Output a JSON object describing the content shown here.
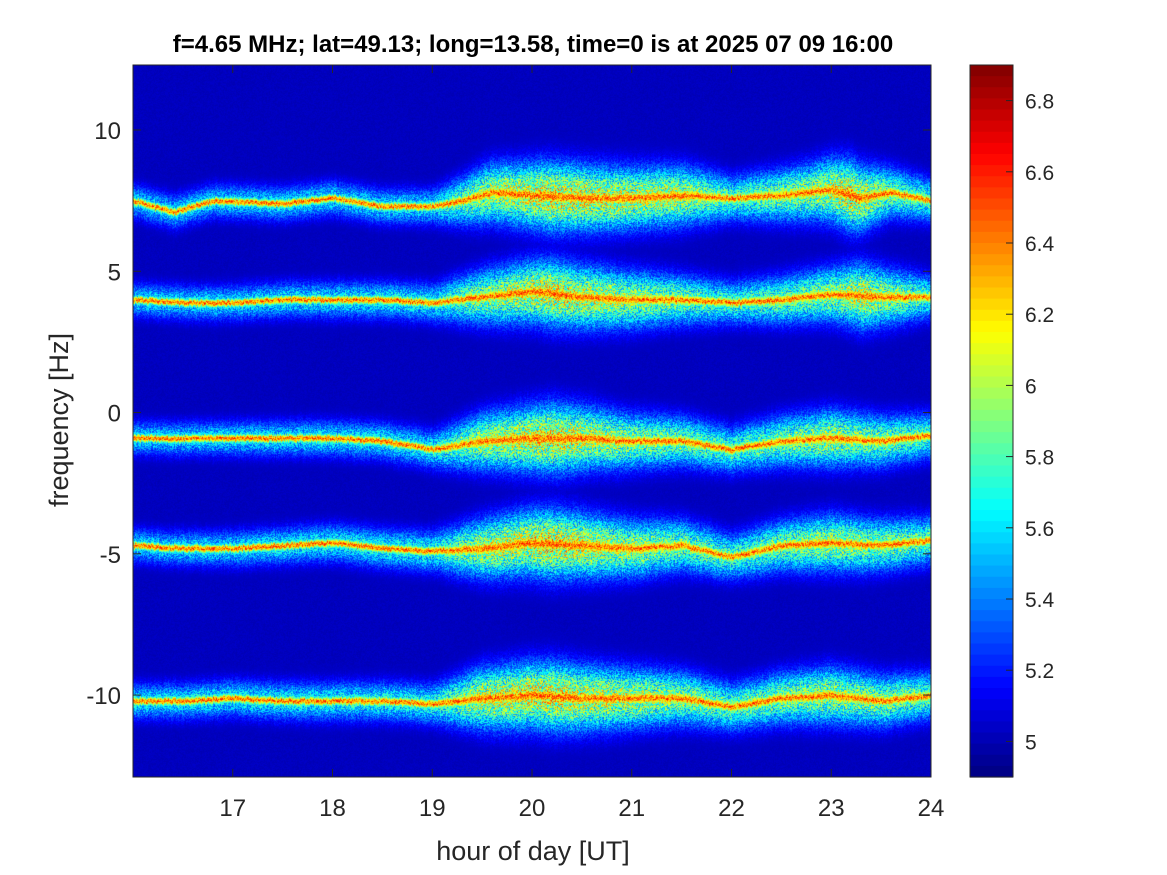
{
  "chart_data": {
    "type": "heatmap",
    "title": "f=4.65 MHz;  lat=49.13; long=13.58, time=0 is at 2025 07 09 16:00",
    "xlabel": "hour of day [UT]",
    "ylabel": "frequency [Hz]",
    "xlim": [
      16,
      24
    ],
    "ylim": [
      -12.9,
      12.3
    ],
    "xticks": [
      17,
      18,
      19,
      20,
      21,
      22,
      23,
      24
    ],
    "xtick_labels": [
      "17",
      "18",
      "19",
      "20",
      "21",
      "22",
      "23",
      "24"
    ],
    "yticks": [
      10,
      5,
      0,
      -5,
      -10
    ],
    "ytick_labels": [
      "10",
      "5",
      "0",
      "-5",
      "-10"
    ],
    "colorbar": {
      "range": [
        4.9,
        6.9
      ],
      "ticks": [
        6.8,
        6.6,
        6.4,
        6.2,
        6,
        5.8,
        5.6,
        5.4,
        5.2,
        5
      ],
      "tick_labels": [
        "6.8",
        "6.6",
        "6.4",
        "6.2",
        "6",
        "5.8",
        "5.6",
        "5.4",
        "5.2",
        "5"
      ],
      "colormap": "jet",
      "position": "right"
    },
    "background_value": 4.92,
    "traces": [
      {
        "baseline": 7.4,
        "points": [
          [
            16,
            7.5
          ],
          [
            16.4,
            7.1
          ],
          [
            16.8,
            7.5
          ],
          [
            17.5,
            7.4
          ],
          [
            18,
            7.6
          ],
          [
            18.5,
            7.3
          ],
          [
            19,
            7.3
          ],
          [
            19.3,
            7.5
          ],
          [
            19.6,
            7.8
          ],
          [
            20,
            7.7
          ],
          [
            20.5,
            7.6
          ],
          [
            21,
            7.6
          ],
          [
            21.5,
            7.7
          ],
          [
            22,
            7.6
          ],
          [
            22.5,
            7.7
          ],
          [
            23,
            7.9
          ],
          [
            23.3,
            7.6
          ],
          [
            23.6,
            7.8
          ],
          [
            24,
            7.5
          ]
        ],
        "activity": [
          [
            16,
            0.25
          ],
          [
            19,
            0.3
          ],
          [
            19.5,
            0.75
          ],
          [
            20.2,
            1.0
          ],
          [
            21,
            0.85
          ],
          [
            21.5,
            0.8
          ],
          [
            22,
            0.5
          ],
          [
            22.8,
            0.75
          ],
          [
            23.2,
            1.0
          ],
          [
            23.6,
            0.6
          ],
          [
            24,
            0.45
          ]
        ]
      },
      {
        "baseline": 4.0,
        "points": [
          [
            16,
            4.0
          ],
          [
            16.5,
            3.9
          ],
          [
            17,
            3.9
          ],
          [
            17.5,
            4.0
          ],
          [
            18,
            4.0
          ],
          [
            18.5,
            4.0
          ],
          [
            19,
            3.9
          ],
          [
            19.5,
            4.1
          ],
          [
            20,
            4.3
          ],
          [
            20.5,
            4.1
          ],
          [
            21,
            4.0
          ],
          [
            21.5,
            4.0
          ],
          [
            22,
            3.9
          ],
          [
            22.5,
            4.0
          ],
          [
            23,
            4.2
          ],
          [
            23.5,
            4.1
          ],
          [
            24,
            4.1
          ]
        ],
        "activity": [
          [
            16,
            0.25
          ],
          [
            19,
            0.35
          ],
          [
            19.5,
            0.7
          ],
          [
            20.2,
            0.95
          ],
          [
            21,
            0.75
          ],
          [
            22,
            0.45
          ],
          [
            23,
            0.7
          ],
          [
            23.3,
            0.9
          ],
          [
            24,
            0.45
          ]
        ]
      },
      {
        "baseline": -0.9,
        "points": [
          [
            16,
            -0.9
          ],
          [
            16.5,
            -0.9
          ],
          [
            17,
            -0.9
          ],
          [
            17.5,
            -0.9
          ],
          [
            18,
            -0.9
          ],
          [
            18.5,
            -1.0
          ],
          [
            19,
            -1.3
          ],
          [
            19.5,
            -1.0
          ],
          [
            20,
            -0.9
          ],
          [
            20.5,
            -0.9
          ],
          [
            21,
            -1.0
          ],
          [
            21.5,
            -1.0
          ],
          [
            22,
            -1.3
          ],
          [
            22.5,
            -1.0
          ],
          [
            23,
            -0.9
          ],
          [
            23.5,
            -1.0
          ],
          [
            24,
            -0.8
          ]
        ],
        "activity": [
          [
            16,
            0.25
          ],
          [
            19,
            0.35
          ],
          [
            19.5,
            0.75
          ],
          [
            20.2,
            1.0
          ],
          [
            21,
            0.7
          ],
          [
            22,
            0.5
          ],
          [
            23,
            0.75
          ],
          [
            24,
            0.5
          ]
        ]
      },
      {
        "baseline": -4.7,
        "points": [
          [
            16,
            -4.7
          ],
          [
            16.5,
            -4.8
          ],
          [
            17,
            -4.8
          ],
          [
            17.5,
            -4.7
          ],
          [
            18,
            -4.6
          ],
          [
            18.5,
            -4.8
          ],
          [
            19,
            -4.9
          ],
          [
            19.5,
            -4.8
          ],
          [
            20,
            -4.6
          ],
          [
            20.5,
            -4.7
          ],
          [
            21,
            -4.8
          ],
          [
            21.5,
            -4.7
          ],
          [
            22,
            -5.1
          ],
          [
            22.5,
            -4.7
          ],
          [
            23,
            -4.6
          ],
          [
            23.5,
            -4.7
          ],
          [
            24,
            -4.5
          ]
        ],
        "activity": [
          [
            16,
            0.25
          ],
          [
            19,
            0.4
          ],
          [
            19.5,
            0.8
          ],
          [
            20.2,
            1.0
          ],
          [
            21,
            0.75
          ],
          [
            22,
            0.5
          ],
          [
            23,
            0.75
          ],
          [
            24,
            0.55
          ]
        ]
      },
      {
        "baseline": -10.1,
        "points": [
          [
            16,
            -10.2
          ],
          [
            16.5,
            -10.2
          ],
          [
            17,
            -10.1
          ],
          [
            17.5,
            -10.2
          ],
          [
            18,
            -10.2
          ],
          [
            18.5,
            -10.2
          ],
          [
            19,
            -10.3
          ],
          [
            19.5,
            -10.1
          ],
          [
            20,
            -10.0
          ],
          [
            20.5,
            -10.1
          ],
          [
            21,
            -10.1
          ],
          [
            21.5,
            -10.1
          ],
          [
            22,
            -10.4
          ],
          [
            22.5,
            -10.1
          ],
          [
            23,
            -10.0
          ],
          [
            23.5,
            -10.2
          ],
          [
            24,
            -10.0
          ]
        ],
        "activity": [
          [
            16,
            0.3
          ],
          [
            19,
            0.4
          ],
          [
            19.5,
            0.85
          ],
          [
            20.2,
            1.0
          ],
          [
            21,
            0.8
          ],
          [
            22,
            0.55
          ],
          [
            23,
            0.75
          ],
          [
            24,
            0.55
          ]
        ]
      }
    ]
  }
}
